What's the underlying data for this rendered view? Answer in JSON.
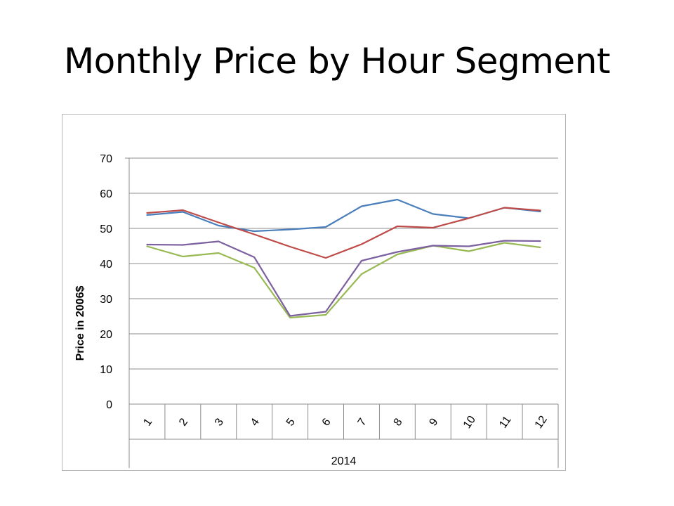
{
  "slide": {
    "title": "Monthly Price by Hour Segment"
  },
  "chart_data": {
    "type": "line",
    "title": "",
    "ylabel": "Price in 2006$",
    "xgroup_label": "2014",
    "categories": [
      "1",
      "2",
      "3",
      "4",
      "5",
      "6",
      "7",
      "8",
      "9",
      "10",
      "11",
      "12"
    ],
    "ylim": [
      0,
      70
    ],
    "yticks": [
      0,
      10,
      20,
      30,
      40,
      50,
      60,
      70
    ],
    "grid": true,
    "legend": "none",
    "series": [
      {
        "color": "#4a7ebb",
        "values": [
          53.8,
          54.7,
          50.8,
          49.2,
          49.7,
          50.4,
          56.3,
          58.2,
          54.1,
          52.9,
          55.9,
          54.8
        ]
      },
      {
        "color": "#be4b48",
        "values": [
          54.4,
          55.2,
          51.7,
          48.3,
          44.8,
          41.6,
          45.5,
          50.6,
          50.2,
          52.9,
          55.9,
          55.1
        ]
      },
      {
        "color": "#98b954",
        "values": [
          44.9,
          42.0,
          43.0,
          38.8,
          24.6,
          25.4,
          37.0,
          42.6,
          45.1,
          43.5,
          45.9,
          44.6
        ]
      },
      {
        "color": "#7d60a0",
        "values": [
          45.4,
          45.3,
          46.3,
          41.8,
          25.1,
          26.3,
          40.8,
          43.3,
          45.1,
          44.9,
          46.5,
          46.4
        ]
      }
    ]
  }
}
